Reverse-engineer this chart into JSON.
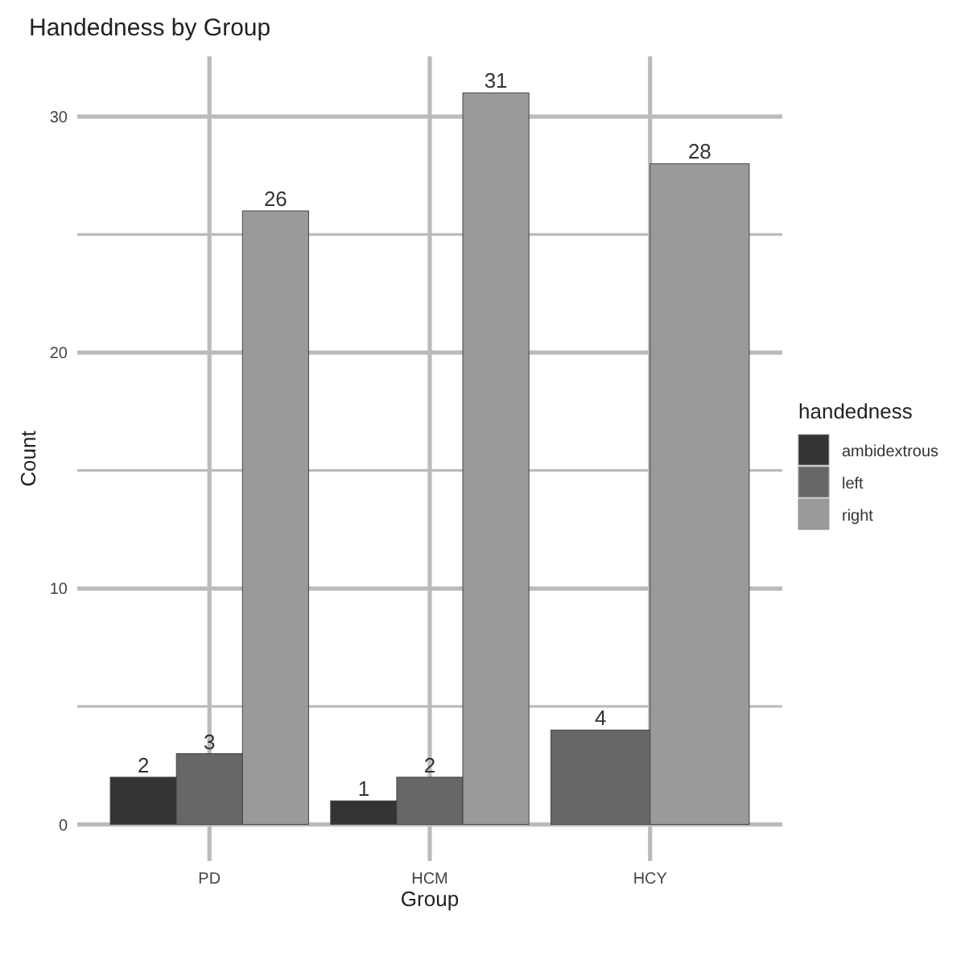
{
  "chart_data": {
    "type": "bar",
    "title": "Handedness by Group",
    "xlabel": "Group",
    "ylabel": "Count",
    "legend_title": "handedness",
    "categories": [
      "PD",
      "HCM",
      "HCY"
    ],
    "series": [
      {
        "name": "ambidextrous",
        "color": "#333333",
        "values": [
          2,
          1,
          null
        ]
      },
      {
        "name": "left",
        "color": "#676767",
        "values": [
          3,
          2,
          4
        ]
      },
      {
        "name": "right",
        "color": "#9a9a9a",
        "values": [
          26,
          31,
          28
        ]
      }
    ],
    "ylim": [
      -1.55,
      32.55
    ],
    "yticks": [
      0,
      {
        "value": 5,
        "label": null
      },
      10,
      {
        "value": 15,
        "label": null
      },
      20,
      {
        "value": 25,
        "label": null
      },
      30
    ],
    "grid": true,
    "legend": "right",
    "data_labels": true
  }
}
